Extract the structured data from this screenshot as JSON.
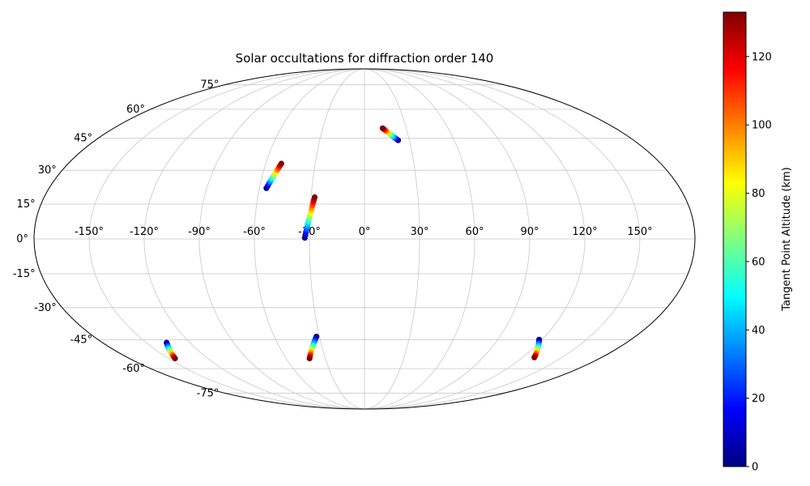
{
  "title": "Solar occultations for diffraction order 140",
  "colorbar": {
    "label": "Tangent Point Altitude (km)",
    "ticks": [
      "0",
      "20",
      "40",
      "60",
      "80",
      "100",
      "120"
    ],
    "tick_values": [
      0,
      20,
      40,
      60,
      80,
      100,
      120
    ],
    "vmin": 0,
    "vmax": 133,
    "colormap": "jet"
  },
  "map": {
    "projection": "mollweide",
    "grid_color": "#c8c8c8",
    "outline_color": "#000000",
    "background": "#ffffff",
    "lat_tick_deg": [
      75,
      60,
      45,
      30,
      15,
      0,
      -15,
      -30,
      -45,
      -60,
      -75
    ],
    "lon_tick_deg": [
      -150,
      -120,
      -90,
      -60,
      -30,
      0,
      30,
      60,
      90,
      120,
      150
    ],
    "lat_labels": [
      "75°",
      "60°",
      "45°",
      "30°",
      "15°",
      "0°",
      "-15°",
      "-30°",
      "-45°",
      "-60°",
      "-75°"
    ],
    "lon_labels": [
      "-150°",
      "-120°",
      "-90°",
      "-60°",
      "-30°",
      "0°",
      "30°",
      "60°",
      "90°",
      "120°",
      "150°"
    ]
  },
  "chart_data": {
    "type": "scatter",
    "projection": "mollweide",
    "title": "Solar occultations for diffraction order 140",
    "colorbar_label": "Tangent Point Altitude (km)",
    "colormap": "jet",
    "altitude_range_km": [
      0,
      133
    ],
    "altitude_ticks_km": [
      0,
      20,
      40,
      60,
      80,
      100,
      120
    ],
    "grid": {
      "lat_step_deg": 15,
      "lon_step_deg": 30
    },
    "tracks": [
      {
        "name": "occultation-1",
        "start": {
          "lat": 50.0,
          "lon": 13.0,
          "alt_km": 133
        },
        "end": {
          "lat": 44.0,
          "lon": 22.5,
          "alt_km": 0
        },
        "n_points": 10
      },
      {
        "name": "occultation-2",
        "start": {
          "lat": 33.0,
          "lon": -50.5,
          "alt_km": 133
        },
        "end": {
          "lat": 22.0,
          "lon": -56.0,
          "alt_km": 0
        },
        "n_points": 12
      },
      {
        "name": "occultation-3",
        "start": {
          "lat": 18.0,
          "lon": -28.0,
          "alt_km": 133
        },
        "end": {
          "lat": 0.5,
          "lon": -32.5,
          "alt_km": 0
        },
        "n_points": 16
      },
      {
        "name": "occultation-4",
        "start": {
          "lat": -54.5,
          "lon": -145.0,
          "alt_km": 133
        },
        "end": {
          "lat": -46.5,
          "lon": -136.0,
          "alt_km": 0
        },
        "n_points": 10
      },
      {
        "name": "occultation-5",
        "start": {
          "lat": -54.5,
          "lon": -42.0,
          "alt_km": 133
        },
        "end": {
          "lat": -43.5,
          "lon": -32.0,
          "alt_km": 0
        },
        "n_points": 11
      },
      {
        "name": "occultation-6",
        "start": {
          "lat": -54.0,
          "lon": 129.0,
          "alt_km": 133
        },
        "end": {
          "lat": -45.0,
          "lon": 118.0,
          "alt_km": 0
        },
        "n_points": 10
      }
    ]
  }
}
